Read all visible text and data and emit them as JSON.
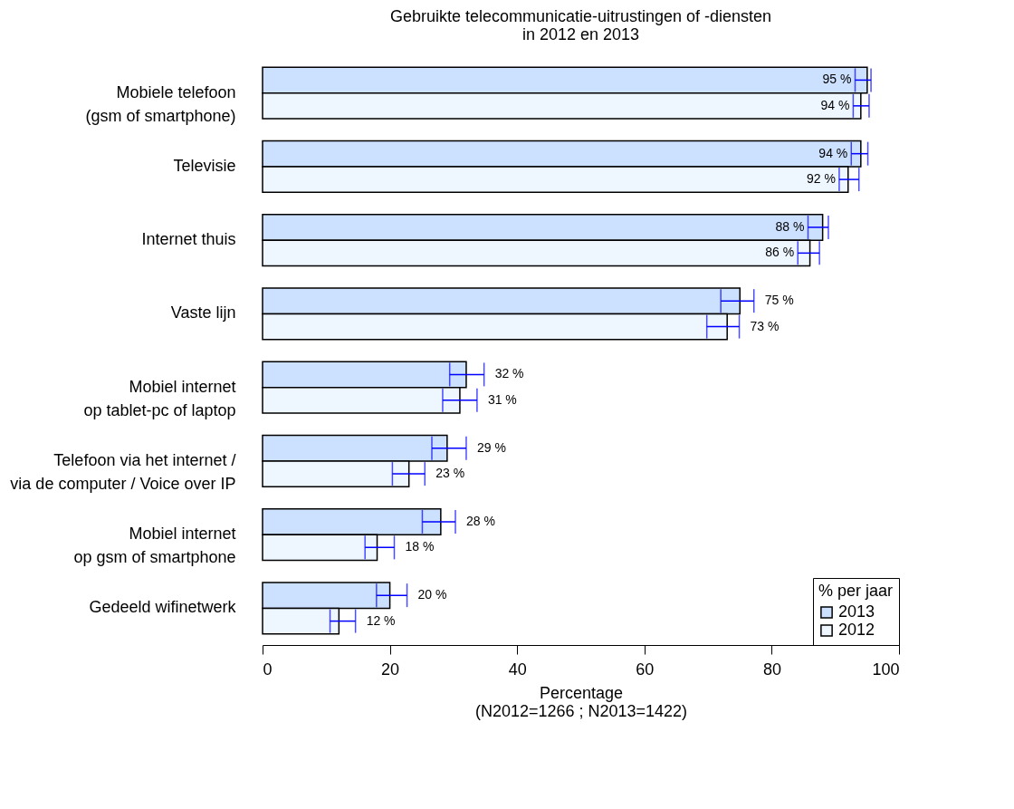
{
  "chart_data": {
    "type": "bar",
    "orientation": "horizontal",
    "title": "Gebruikte telecommunicatie-uitrustingen of -diensten\nin 2012 en 2013",
    "xlabel": "Percentage",
    "annotations": [
      "(N2012=1266 ; N2013=1422)"
    ],
    "legend_title": "% per jaar",
    "legend": "bottom right",
    "categories": [
      "Mobiele telefoon\n(gsm of smartphone)",
      "Televisie",
      "Internet thuis",
      "Vaste lijn",
      "Mobiel internet\nop tablet-pc of laptop",
      "Telefoon via het internet /\nvia de computer / Voice over IP",
      "Mobiel internet\nop gsm of smartphone",
      "Gedeeld wifinetwerk"
    ],
    "series": [
      {
        "name": "2013",
        "color": "#cce0ff",
        "values": [
          95,
          94,
          88,
          75,
          32,
          29,
          28,
          20
        ],
        "value_labels": [
          "95 %",
          "94 %",
          "88 %",
          "75 %",
          "32 %",
          "29 %",
          "28 %",
          "20 %"
        ],
        "errors": [
          [
            93.1,
            95.6
          ],
          [
            92.5,
            95.1
          ],
          [
            85.7,
            88.9
          ],
          [
            72.0,
            77.2
          ],
          [
            29.4,
            34.8
          ],
          [
            26.6,
            32.0
          ],
          [
            25.1,
            30.3
          ],
          [
            17.9,
            22.7
          ]
        ]
      },
      {
        "name": "2012",
        "color": "#eef6ff",
        "values": [
          94,
          92,
          86,
          73,
          31,
          23,
          18,
          12
        ],
        "value_labels": [
          "94 %",
          "92 %",
          "86 %",
          "73 %",
          "31 %",
          "23 %",
          "18 %",
          "12 %"
        ],
        "errors": [
          [
            92.8,
            95.3
          ],
          [
            90.6,
            93.7
          ],
          [
            84.1,
            87.5
          ],
          [
            69.8,
            74.9
          ],
          [
            28.3,
            33.7
          ],
          [
            20.4,
            25.5
          ],
          [
            16.1,
            20.7
          ],
          [
            10.6,
            14.6
          ]
        ]
      }
    ],
    "xlim": [
      0,
      100
    ],
    "xticks": [
      0,
      20,
      40,
      60,
      80,
      100
    ],
    "grid": false
  }
}
